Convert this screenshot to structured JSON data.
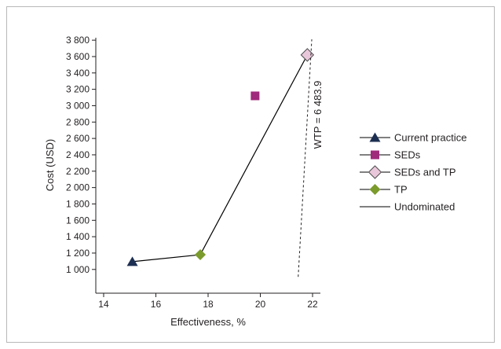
{
  "chart_data": {
    "type": "scatter",
    "title": "",
    "xlabel": "Effectiveness, %",
    "ylabel": "Cost (USD)",
    "xlim": [
      13.7,
      22.3
    ],
    "ylim": [
      710,
      3830
    ],
    "grid": false,
    "legend_position": "right",
    "xticks": [
      {
        "value": 14,
        "label": "14"
      },
      {
        "value": 16,
        "label": "16"
      },
      {
        "value": 18,
        "label": "18"
      },
      {
        "value": 20,
        "label": "20"
      },
      {
        "value": 22,
        "label": "22"
      }
    ],
    "yticks": [
      {
        "value": 1000,
        "label": "1 000"
      },
      {
        "value": 1200,
        "label": "1 200"
      },
      {
        "value": 1400,
        "label": "1 400"
      },
      {
        "value": 1600,
        "label": "1 600"
      },
      {
        "value": 1800,
        "label": "1 800"
      },
      {
        "value": 2000,
        "label": "2 000"
      },
      {
        "value": 2200,
        "label": "2 200"
      },
      {
        "value": 2400,
        "label": "2 400"
      },
      {
        "value": 2600,
        "label": "2 600"
      },
      {
        "value": 2800,
        "label": "2 800"
      },
      {
        "value": 3000,
        "label": "3 000"
      },
      {
        "value": 3200,
        "label": "3 200"
      },
      {
        "value": 3400,
        "label": "3 400"
      },
      {
        "value": 3600,
        "label": "3 600"
      },
      {
        "value": 3800,
        "label": "3 800"
      }
    ],
    "series": [
      {
        "name": "Current practice",
        "marker": "triangle",
        "color": "#1c2f52",
        "x": [
          15.1
        ],
        "y": [
          1095
        ]
      },
      {
        "name": "SEDs",
        "marker": "square",
        "color": "#a02a7c",
        "x": [
          19.8
        ],
        "y": [
          3120
        ]
      },
      {
        "name": "SEDs and TP",
        "marker": "diamond",
        "color": "#e9c7da",
        "stroke": "#4d4d4d",
        "x": [
          21.8
        ],
        "y": [
          3620
        ]
      },
      {
        "name": "TP",
        "marker": "diamond",
        "color": "#7b9b2c",
        "x": [
          17.7
        ],
        "y": [
          1180
        ]
      },
      {
        "name": "Undominated",
        "marker": "line",
        "color": "#000000",
        "x": [
          15.1,
          17.7,
          21.8
        ],
        "y": [
          1095,
          1180,
          3620
        ]
      }
    ],
    "annotations": [
      {
        "text": "WTP = 6 483.9",
        "line_style": "dashed",
        "x": [
          21.45,
          21.97
        ],
        "y": [
          910,
          3810
        ]
      }
    ]
  }
}
